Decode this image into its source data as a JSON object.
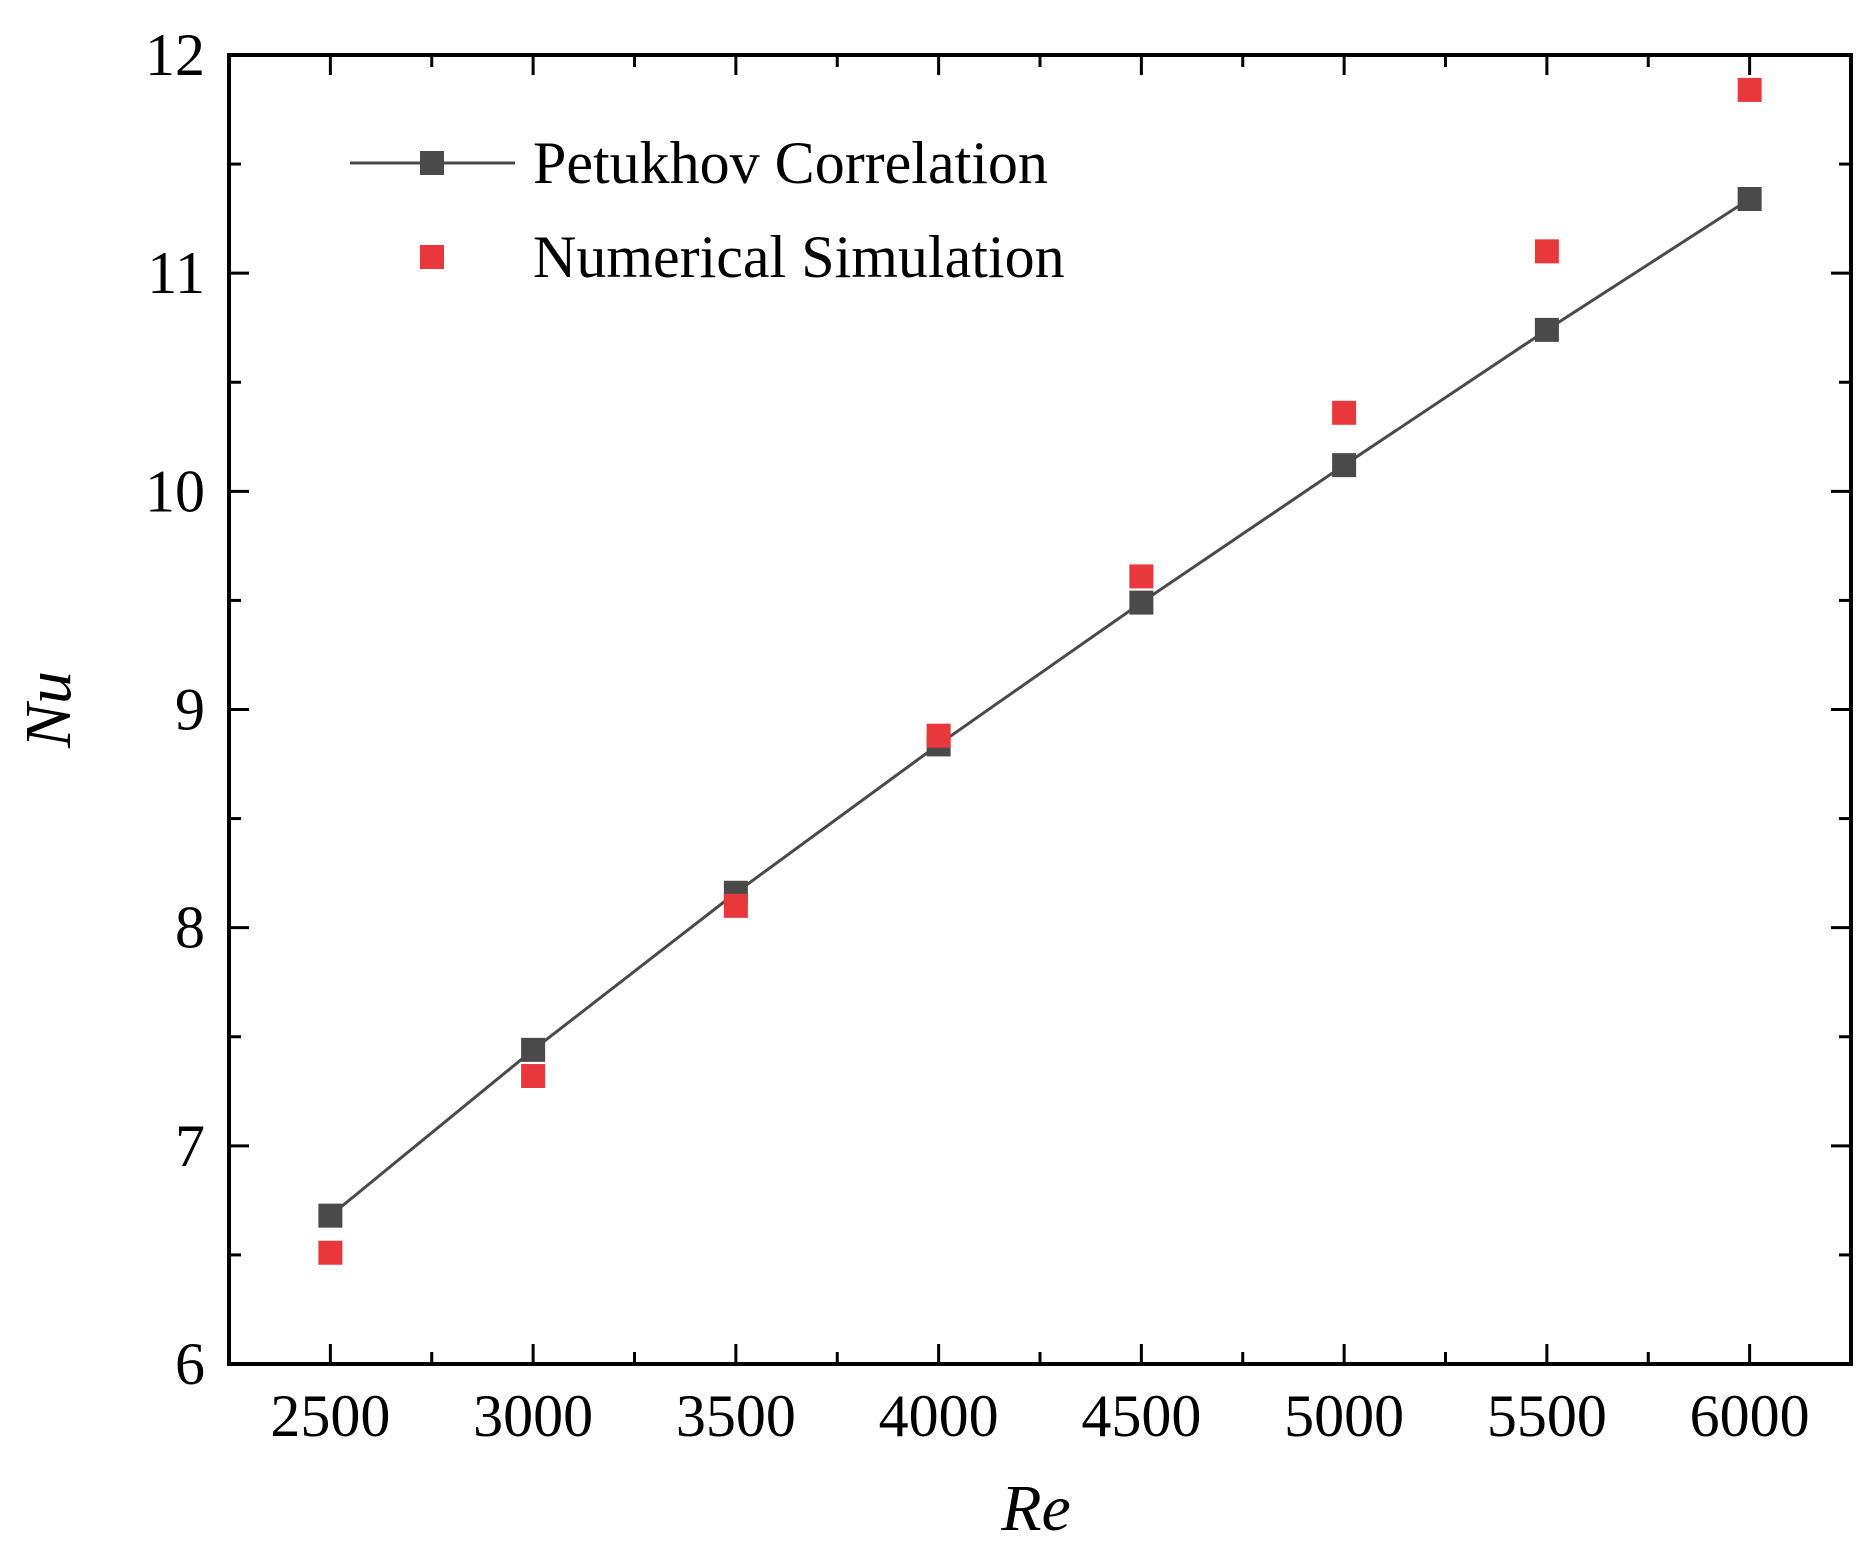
{
  "chart_data": {
    "type": "line",
    "title": "",
    "xlabel": "Re",
    "ylabel": "Nu",
    "xlim": [
      2250,
      6250
    ],
    "ylim": [
      6,
      12
    ],
    "x": [
      2500,
      3000,
      3500,
      4000,
      4500,
      5000,
      5500,
      6000
    ],
    "xticks": [
      2500,
      3000,
      3500,
      4000,
      4500,
      5000,
      5500,
      6000
    ],
    "xtick_labels": [
      "2500",
      "3000",
      "3500",
      "4000",
      "4500",
      "5000",
      "5500",
      "6000"
    ],
    "yticks": [
      6,
      7,
      8,
      9,
      10,
      11,
      12
    ],
    "ytick_labels": [
      "6",
      "7",
      "8",
      "9",
      "10",
      "11",
      "12"
    ],
    "grid": false,
    "legend_position": "top-left",
    "series": [
      {
        "name": "Petukhov Correlation",
        "style": "line+marker",
        "color": "#4a4a4a",
        "values": [
          6.68,
          7.44,
          8.16,
          8.84,
          9.49,
          10.12,
          10.74,
          11.34
        ]
      },
      {
        "name": "Numerical Simulation",
        "style": "marker",
        "color": "#e8383b",
        "values": [
          6.51,
          7.32,
          8.1,
          8.88,
          9.61,
          10.36,
          11.1,
          11.84
        ]
      }
    ]
  }
}
